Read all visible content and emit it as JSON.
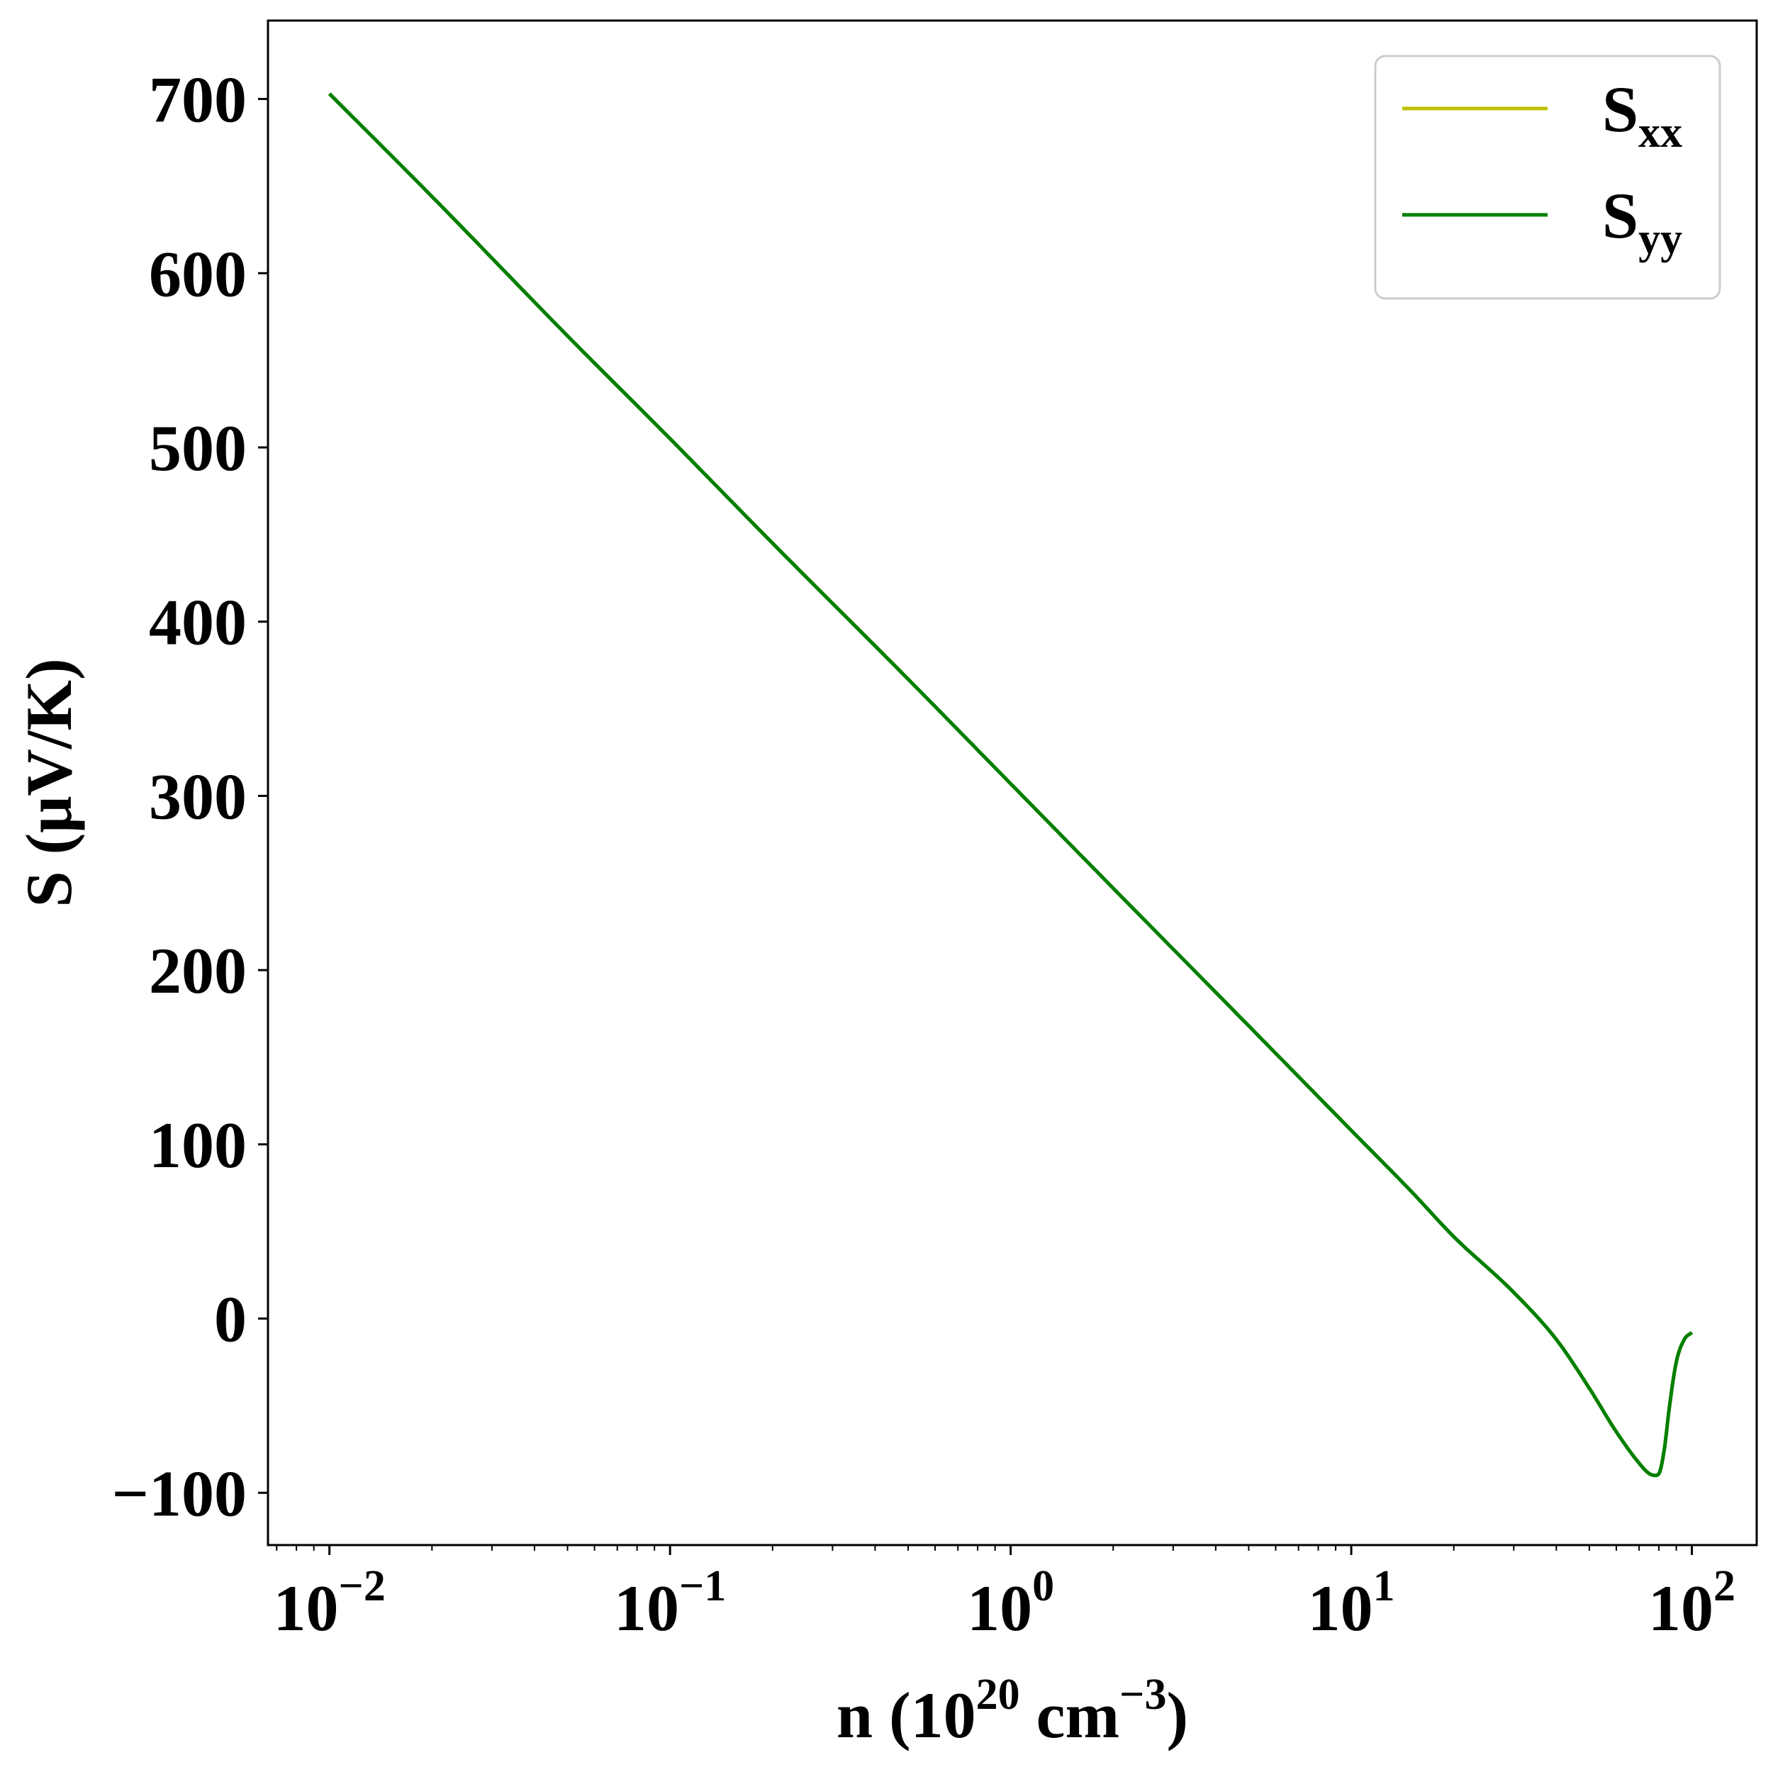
{
  "chart_data": {
    "type": "line",
    "xlabel": {
      "prefix": "n (10",
      "sup1": "20",
      "mid": " cm",
      "sup2": "−3",
      "suffix": ")"
    },
    "ylabel": "S (μV/K)",
    "x_scale": "log",
    "xlim": [
      0.0066,
      155
    ],
    "ylim": [
      -130,
      745
    ],
    "x_ticks": [
      {
        "value": 0.01,
        "base": "10",
        "exp": "−2"
      },
      {
        "value": 0.1,
        "base": "10",
        "exp": "−1"
      },
      {
        "value": 1,
        "base": "10",
        "exp": "0"
      },
      {
        "value": 10,
        "base": "10",
        "exp": "1"
      },
      {
        "value": 100,
        "base": "10",
        "exp": "2"
      }
    ],
    "y_ticks": [
      {
        "value": -100,
        "label": "−100"
      },
      {
        "value": 0,
        "label": "0"
      },
      {
        "value": 100,
        "label": "100"
      },
      {
        "value": 200,
        "label": "200"
      },
      {
        "value": 300,
        "label": "300"
      },
      {
        "value": 400,
        "label": "400"
      },
      {
        "value": 500,
        "label": "500"
      },
      {
        "value": 600,
        "label": "600"
      },
      {
        "value": 700,
        "label": "700"
      }
    ],
    "grid": false,
    "legend_position": "top-right",
    "series": [
      {
        "name": "S",
        "name_sub": "xx",
        "color": "#bfbf00",
        "x": [
          0.01,
          0.02,
          0.05,
          0.1,
          0.2,
          0.5,
          1,
          2,
          5,
          10,
          15,
          20,
          30,
          40,
          50,
          60,
          70,
          75,
          78,
          80,
          83,
          86,
          90,
          95,
          100
        ],
        "y": [
          703,
          644,
          564,
          505,
          445,
          367,
          307,
          247,
          168,
          108,
          73,
          47,
          15,
          -12,
          -40,
          -65,
          -83,
          -89,
          -90,
          -89,
          -75,
          -50,
          -25,
          -12,
          -8
        ]
      },
      {
        "name": "S",
        "name_sub": "yy",
        "color": "#007f00",
        "x": [
          0.01,
          0.02,
          0.05,
          0.1,
          0.2,
          0.5,
          1,
          2,
          5,
          10,
          15,
          20,
          30,
          40,
          50,
          60,
          70,
          75,
          78,
          80,
          83,
          86,
          90,
          95,
          100
        ],
        "y": [
          703,
          644,
          564,
          505,
          445,
          367,
          307,
          247,
          168,
          108,
          73,
          47,
          15,
          -12,
          -40,
          -65,
          -83,
          -89,
          -90,
          -89,
          -75,
          -50,
          -25,
          -12,
          -8
        ]
      }
    ]
  }
}
